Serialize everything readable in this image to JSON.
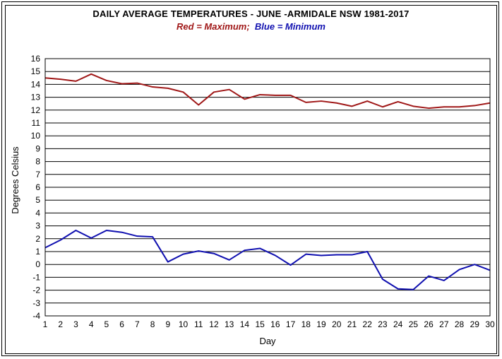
{
  "chart_data": {
    "type": "line",
    "title": "DAILY AVERAGE  TEMPERATURES - JUNE -ARMIDALE NSW  1981-2017",
    "subtitle": {
      "red_word": "Red",
      "red_text": " = Maximum;  ",
      "blue_word": "Blue",
      "blue_text": " = Minimum"
    },
    "xlabel": "Day",
    "ylabel": "Degrees Celsius",
    "xlim": [
      1,
      30
    ],
    "ylim": [
      -4,
      16
    ],
    "grid": true,
    "x": [
      1,
      2,
      3,
      4,
      5,
      6,
      7,
      8,
      9,
      10,
      11,
      12,
      13,
      14,
      15,
      16,
      17,
      18,
      19,
      20,
      21,
      22,
      23,
      24,
      25,
      26,
      27,
      28,
      29,
      30
    ],
    "series": [
      {
        "name": "Maximum",
        "color": "#a01818",
        "values": [
          14.5,
          14.4,
          14.25,
          14.8,
          14.3,
          14.05,
          14.1,
          13.8,
          13.7,
          13.4,
          12.4,
          13.4,
          13.6,
          12.85,
          13.2,
          13.15,
          13.15,
          12.6,
          12.7,
          12.55,
          12.3,
          12.7,
          12.25,
          12.65,
          12.3,
          12.15,
          12.25,
          12.25,
          12.35,
          12.55
        ]
      },
      {
        "name": "Minimum",
        "color": "#1010b0",
        "values": [
          1.3,
          1.9,
          2.65,
          2.05,
          2.65,
          2.5,
          2.2,
          2.15,
          0.2,
          0.8,
          1.05,
          0.85,
          0.35,
          1.1,
          1.25,
          0.7,
          -0.05,
          0.8,
          0.7,
          0.75,
          0.75,
          1.0,
          -1.15,
          -1.9,
          -1.95,
          -0.9,
          -1.25,
          -0.4,
          0.0,
          -0.45
        ]
      }
    ]
  }
}
